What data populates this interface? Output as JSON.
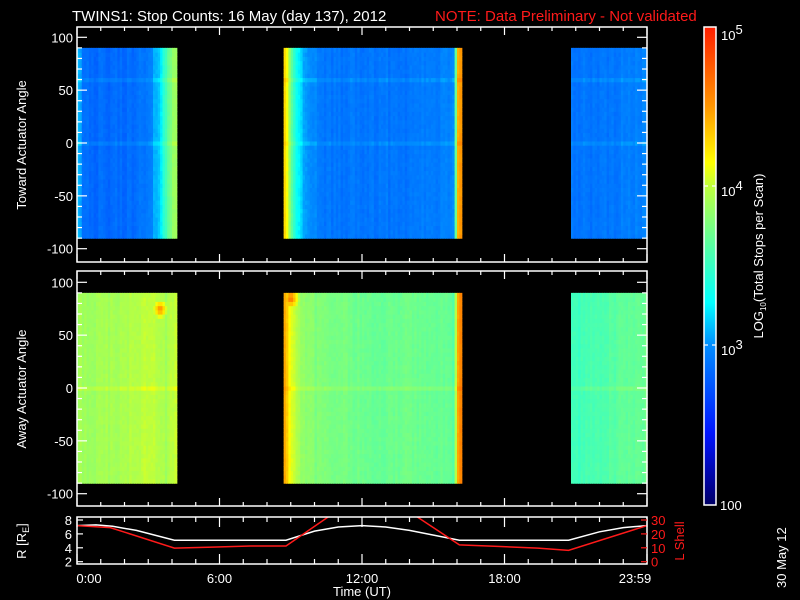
{
  "title": "TWINS1: Stop Counts: 16 May (day 137), 2012",
  "note": "NOTE: Data Preliminary - Not validated",
  "side_date": "30 May 12",
  "colors": {
    "background": "#000000",
    "axes": "#ffffff",
    "note": "#ff1a1a",
    "r_line": "#ffffff",
    "l_shell_line": "#ff1a1a"
  },
  "chart_data": [
    {
      "type": "heatmap",
      "ylabel": "Toward Actuator Angle",
      "ylim": [
        -110,
        110
      ],
      "yticks": [
        "100",
        "50",
        "0",
        "-50",
        "-100"
      ],
      "xlim_hours": [
        0,
        24
      ],
      "hotspots": [],
      "segments": [
        {
          "t": [
            0,
            0.3,
            1,
            2,
            3,
            3.5,
            3.8,
            4.0,
            4.2
          ],
          "angles": [
            90,
            60,
            30,
            0,
            -30,
            -60,
            -90
          ],
          "log_counts": [
            [
              3.2,
              3.25,
              3.2,
              3.2,
              3.2,
              3.2,
              3.2
            ],
            [
              2.85,
              2.95,
              2.8,
              2.8,
              2.8,
              2.85,
              2.9
            ],
            [
              2.85,
              2.95,
              2.8,
              2.8,
              2.85,
              2.85,
              2.9
            ],
            [
              2.85,
              2.95,
              2.8,
              2.8,
              2.85,
              2.85,
              2.9
            ],
            [
              2.9,
              2.95,
              2.85,
              2.85,
              2.85,
              2.9,
              2.95
            ],
            [
              3.2,
              3.2,
              3.15,
              3.15,
              3.15,
              3.2,
              3.2
            ],
            [
              3.6,
              3.6,
              3.6,
              3.65,
              3.6,
              3.6,
              3.6
            ],
            [
              3.85,
              3.85,
              3.85,
              3.9,
              3.85,
              3.85,
              3.9
            ],
            [
              3.9,
              3.9,
              3.9,
              3.9,
              3.9,
              3.95,
              4.0
            ]
          ]
        },
        {
          "t": [
            8.7,
            8.85,
            9.0,
            9.3,
            9.7,
            10.5,
            12,
            14,
            15.5,
            15.9,
            16.0,
            16.2
          ],
          "angles": [
            90,
            60,
            30,
            0,
            -30,
            -60,
            -90
          ],
          "log_counts": [
            [
              4.4,
              4.45,
              4.45,
              4.5,
              4.45,
              4.45,
              4.4
            ],
            [
              4.1,
              4.15,
              4.15,
              4.2,
              4.15,
              4.1,
              4.1
            ],
            [
              3.7,
              3.7,
              3.7,
              3.75,
              3.75,
              3.7,
              3.7
            ],
            [
              3.25,
              3.25,
              3.25,
              3.3,
              3.35,
              3.3,
              3.3
            ],
            [
              3.0,
              3.05,
              3.0,
              3.05,
              3.3,
              3.1,
              2.95
            ],
            [
              2.9,
              3.0,
              2.9,
              2.95,
              3.15,
              3.0,
              2.85
            ],
            [
              2.9,
              2.95,
              2.85,
              2.9,
              3.0,
              2.95,
              2.85
            ],
            [
              2.9,
              2.95,
              2.85,
              2.9,
              2.95,
              2.9,
              2.85
            ],
            [
              2.95,
              2.95,
              2.9,
              2.9,
              2.9,
              2.9,
              2.9
            ],
            [
              3.0,
              3.0,
              2.95,
              2.95,
              2.95,
              2.95,
              3.0
            ],
            [
              4.3,
              4.3,
              4.35,
              4.4,
              4.35,
              4.3,
              4.3
            ],
            [
              4.6,
              4.6,
              4.65,
              4.7,
              4.6,
              4.6,
              4.55
            ]
          ]
        },
        {
          "t": [
            20.8,
            22,
            24
          ],
          "angles": [
            90,
            60,
            30,
            0,
            -30,
            -60,
            -90
          ],
          "log_counts": [
            [
              2.9,
              3.0,
              2.85,
              2.85,
              2.85,
              2.9,
              2.9
            ],
            [
              2.9,
              3.0,
              2.85,
              2.85,
              2.85,
              2.9,
              2.9
            ],
            [
              2.95,
              3.05,
              2.9,
              2.9,
              2.9,
              2.95,
              2.95
            ]
          ]
        }
      ]
    },
    {
      "type": "heatmap",
      "ylabel": "Away Actuator Angle",
      "ylim": [
        -110,
        110
      ],
      "yticks": [
        "100",
        "50",
        "0",
        "-50",
        "-100"
      ],
      "xlim_hours": [
        0,
        24
      ],
      "hotspots": [
        {
          "t": 3.5,
          "angle": 75,
          "log_count": 4.6
        },
        {
          "t": 9.0,
          "angle": 85,
          "log_count": 4.7
        }
      ],
      "segments": [
        {
          "t": [
            0,
            0.3,
            1.5,
            3.0,
            3.4,
            3.7,
            4.0,
            4.2
          ],
          "angles": [
            90,
            75,
            60,
            30,
            0,
            -30,
            -60,
            -90
          ],
          "log_counts": [
            [
              3.9,
              3.6,
              3.3,
              3.0,
              3.0,
              3.0,
              3.0,
              3.0
            ],
            [
              3.9,
              3.5,
              3.0,
              2.7,
              2.75,
              2.75,
              2.8,
              2.85
            ],
            [
              3.9,
              3.6,
              3.05,
              2.7,
              2.75,
              2.75,
              2.8,
              2.85
            ],
            [
              4.0,
              3.8,
              3.2,
              2.8,
              2.8,
              2.8,
              2.85,
              2.9
            ],
            [
              4.0,
              4.0,
              3.5,
              3.2,
              3.15,
              3.15,
              3.2,
              3.2
            ],
            [
              3.9,
              3.8,
              3.6,
              3.55,
              3.55,
              3.55,
              3.6,
              3.6
            ],
            [
              4.0,
              4.0,
              3.9,
              3.9,
              3.9,
              3.9,
              3.95,
              4.0
            ],
            [
              4.0,
              4.0,
              4.0,
              4.0,
              4.0,
              4.0,
              4.05,
              4.1
            ]
          ]
        },
        {
          "t": [
            8.7,
            8.85,
            9.0,
            9.3,
            9.6,
            10.5,
            12,
            14,
            15.5,
            15.9,
            16.0,
            16.2
          ],
          "angles": [
            90,
            75,
            60,
            30,
            0,
            -30,
            -60,
            -90
          ],
          "log_counts": [
            [
              4.5,
              4.5,
              4.5,
              4.5,
              4.55,
              4.5,
              4.5,
              4.5
            ],
            [
              4.3,
              4.2,
              4.2,
              4.2,
              4.2,
              4.2,
              4.2,
              4.2
            ],
            [
              4.1,
              3.9,
              3.85,
              3.8,
              3.8,
              3.8,
              3.8,
              3.8
            ],
            [
              3.9,
              3.6,
              3.5,
              3.35,
              3.3,
              3.3,
              3.3,
              3.3
            ],
            [
              3.8,
              3.5,
              3.3,
              3.05,
              2.95,
              2.95,
              3.0,
              3.0
            ],
            [
              3.75,
              3.45,
              3.25,
              2.9,
              2.75,
              2.75,
              2.8,
              2.85
            ],
            [
              3.7,
              3.4,
              3.15,
              2.8,
              2.7,
              2.7,
              2.75,
              2.8
            ],
            [
              3.7,
              3.35,
              3.05,
              2.75,
              2.7,
              2.7,
              2.75,
              2.8
            ],
            [
              3.7,
              3.3,
              3.0,
              2.75,
              2.75,
              2.75,
              2.8,
              2.85
            ],
            [
              3.6,
              3.2,
              3.0,
              2.9,
              2.9,
              2.9,
              2.95,
              3.0
            ],
            [
              4.4,
              4.4,
              4.4,
              4.35,
              4.4,
              4.35,
              4.35,
              4.3
            ],
            [
              4.6,
              4.6,
              4.6,
              4.55,
              4.6,
              4.5,
              4.5,
              4.5
            ]
          ]
        },
        {
          "t": [
            20.8,
            22,
            24
          ],
          "angles": [
            90,
            75,
            60,
            30,
            0,
            -30,
            -60,
            -90
          ],
          "log_counts": [
            [
              3.5,
              3.1,
              2.9,
              2.8,
              2.85,
              2.85,
              2.85,
              2.85
            ],
            [
              3.6,
              3.3,
              3.1,
              2.85,
              2.85,
              2.85,
              2.85,
              2.9
            ],
            [
              3.7,
              3.45,
              3.35,
              3.0,
              2.9,
              2.9,
              2.9,
              2.95
            ]
          ]
        }
      ]
    },
    {
      "type": "line",
      "xlabel": "Time (UT)",
      "xticks": [
        "0:00",
        "6:00",
        "12:00",
        "18:00",
        "23:59"
      ],
      "xtick_hours": [
        0,
        6,
        12,
        18,
        24
      ],
      "ylabel_left": {
        "main": "R [R",
        "sub": "E",
        "close": "]"
      },
      "ylim_left": [
        2,
        8
      ],
      "yticks_left": [
        "2",
        "4",
        "6",
        "8"
      ],
      "ylabel_right": "L Shell",
      "ylim_right": [
        0,
        30
      ],
      "yticks_right": [
        "0",
        "10",
        "20",
        "30"
      ],
      "series": [
        {
          "axis": "left",
          "color": "#ffffff",
          "x": [
            0,
            0.8,
            1.5,
            2.5,
            4.1,
            8.8,
            10,
            11,
            12,
            13,
            14,
            16.1,
            20.7,
            22,
            23,
            24
          ],
          "y": [
            7.2,
            7.3,
            7.1,
            6.5,
            5.1,
            5.1,
            6.4,
            7.0,
            7.2,
            7.0,
            6.5,
            5.1,
            5.1,
            6.3,
            6.9,
            7.2
          ]
        },
        {
          "axis": "right",
          "color": "#ff1a1a",
          "x": [
            0,
            1.4,
            4.1,
            5.7,
            7.3,
            8.8,
            10.6,
            14.3,
            16.1,
            17.7,
            19.4,
            20.7,
            24
          ],
          "y": [
            26,
            24.5,
            9.8,
            10.5,
            11.3,
            11.3,
            32.5,
            32.5,
            12.1,
            11,
            9.8,
            8.1,
            26
          ]
        }
      ]
    }
  ],
  "colorbar": {
    "label_main": "LOG",
    "label_sub": "10",
    "label_rest": "(Total Stops per Scan)",
    "range_log": [
      2,
      5
    ],
    "ticks": [
      {
        "base": "10",
        "exp": "5"
      },
      {
        "base": "10",
        "exp": "4"
      },
      {
        "base": "10",
        "exp": "3"
      },
      {
        "base": "100",
        "exp": ""
      }
    ]
  }
}
